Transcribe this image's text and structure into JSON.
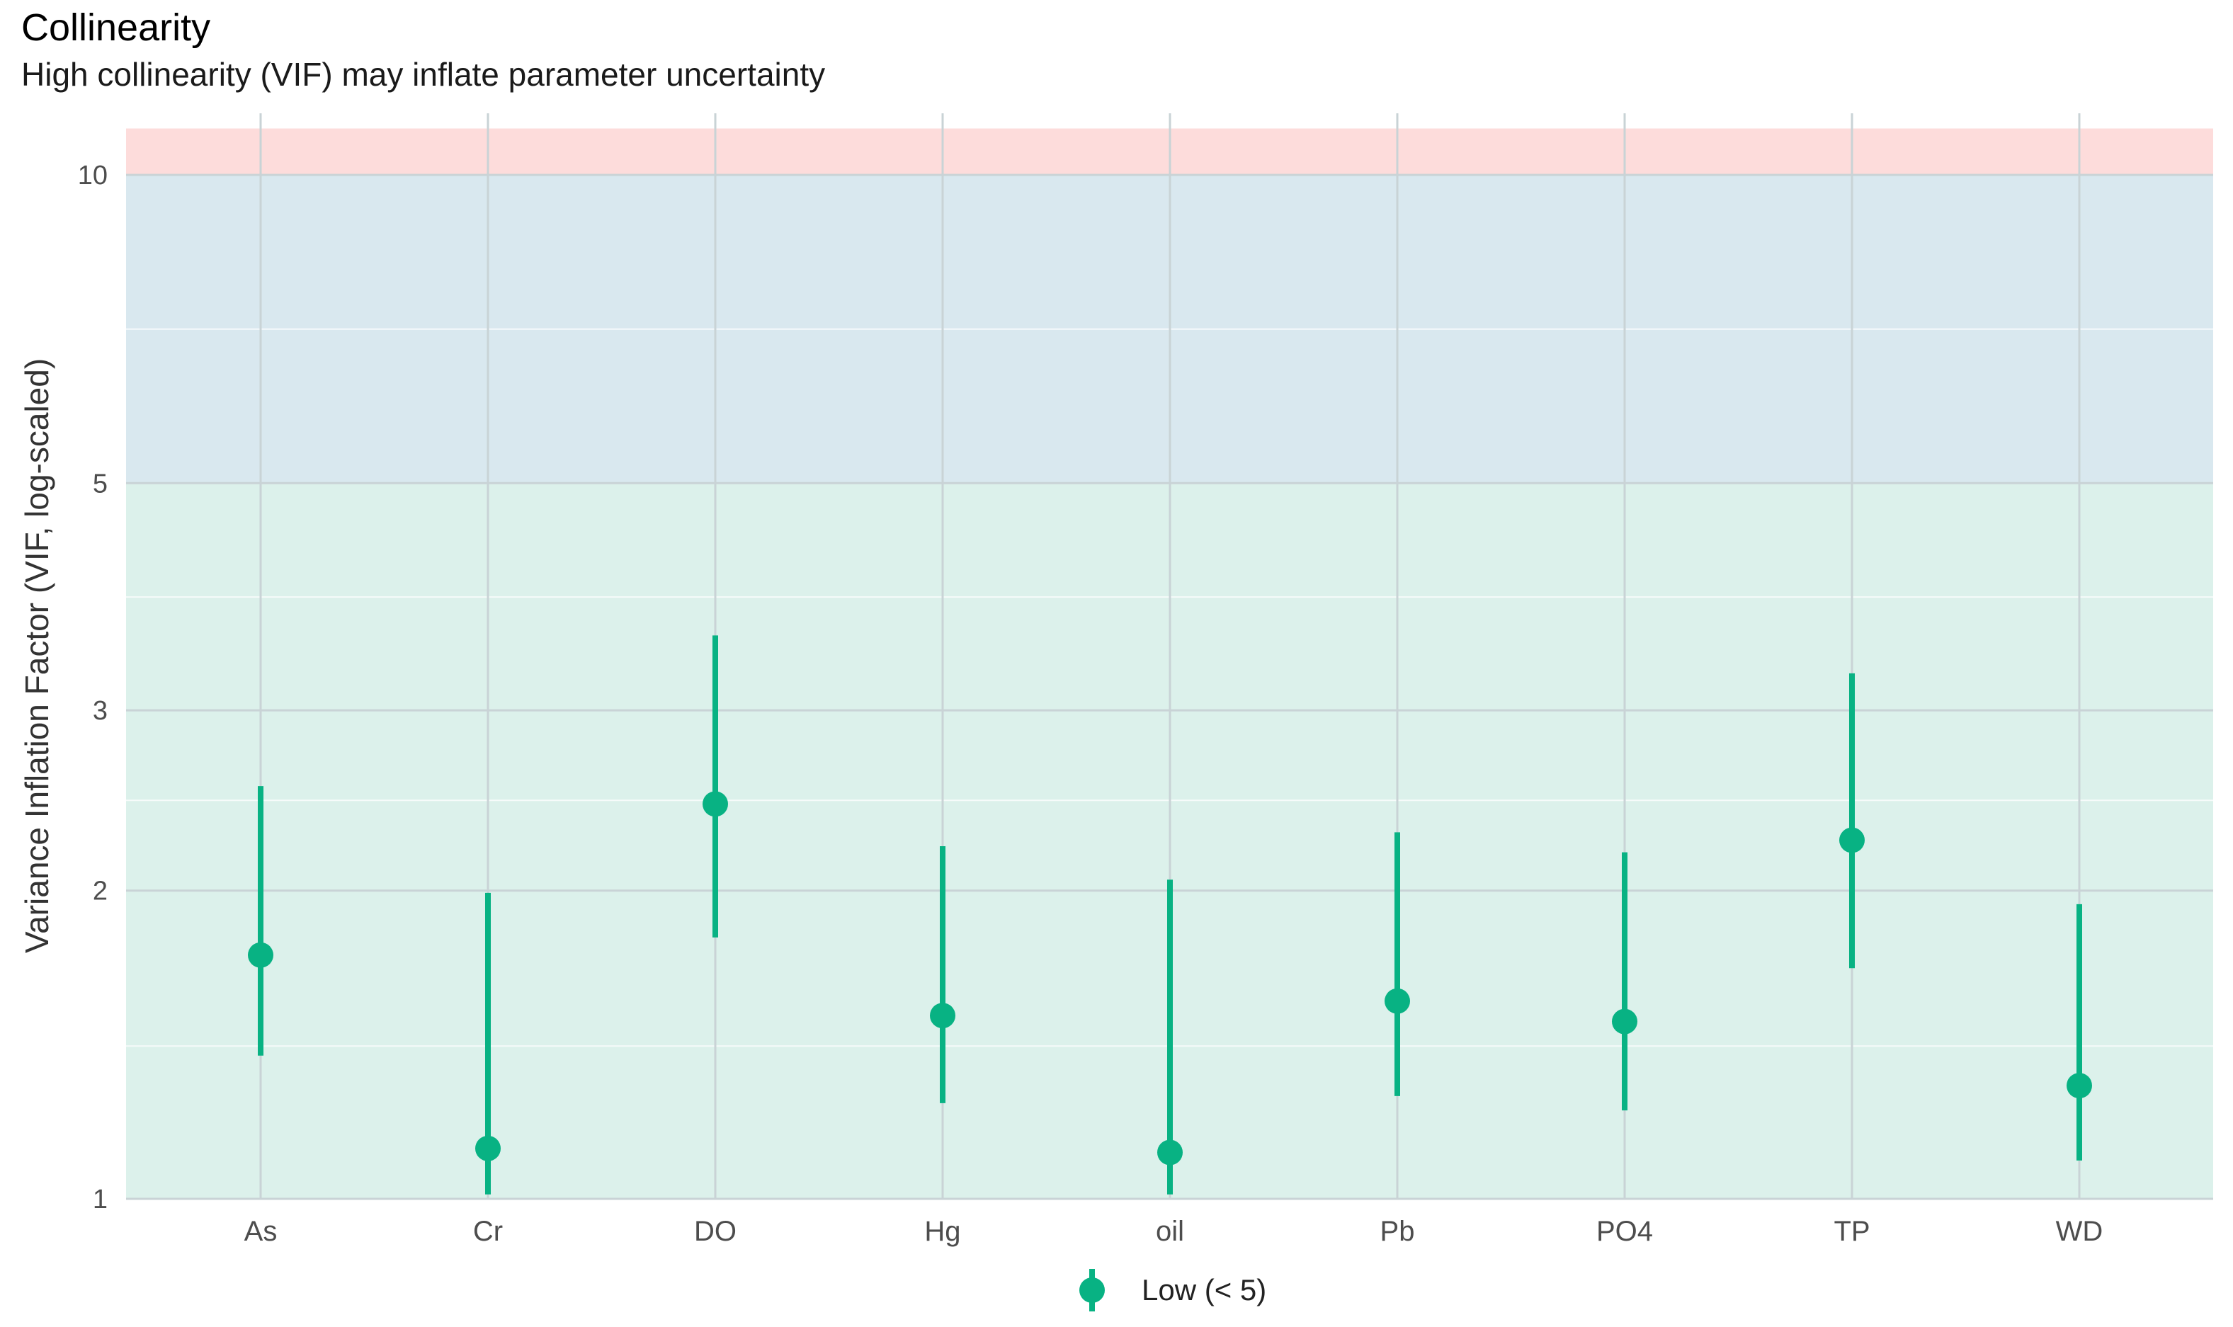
{
  "chart_data": {
    "type": "scatter",
    "title": "Collinearity",
    "subtitle": "High collinearity (VIF) may inflate parameter uncertainty",
    "xlabel": "",
    "ylabel": "Variance Inflation Factor (VIF, log-scaled)",
    "y_scale": "log",
    "ylim": [
      1,
      11.1
    ],
    "y_ticks": [
      1,
      2,
      3,
      5,
      10
    ],
    "y_minor_ticks": [
      1.41,
      2.45,
      3.87,
      7.07
    ],
    "grid": true,
    "legend_position": "bottom",
    "zones": [
      {
        "from": 1,
        "to": 5,
        "color": "#dcf1eb"
      },
      {
        "from": 5,
        "to": 10,
        "color": "#d9e8ef"
      },
      {
        "from": 10,
        "to": 11.1,
        "color": "#fddcdb"
      }
    ],
    "categories": [
      "As",
      "Cr",
      "DO",
      "Hg",
      "oil",
      "Pb",
      "PO4",
      "TP",
      "WD"
    ],
    "series": [
      {
        "name": "Low (< 5)",
        "color": "#08b283",
        "values": [
          1.73,
          1.12,
          2.43,
          1.51,
          1.11,
          1.56,
          1.49,
          2.24,
          1.29
        ],
        "lower": [
          1.38,
          1.01,
          1.8,
          1.24,
          1.01,
          1.26,
          1.22,
          1.68,
          1.09
        ],
        "upper": [
          2.53,
          1.99,
          3.55,
          2.21,
          2.05,
          2.28,
          2.18,
          3.26,
          1.94
        ]
      }
    ]
  }
}
